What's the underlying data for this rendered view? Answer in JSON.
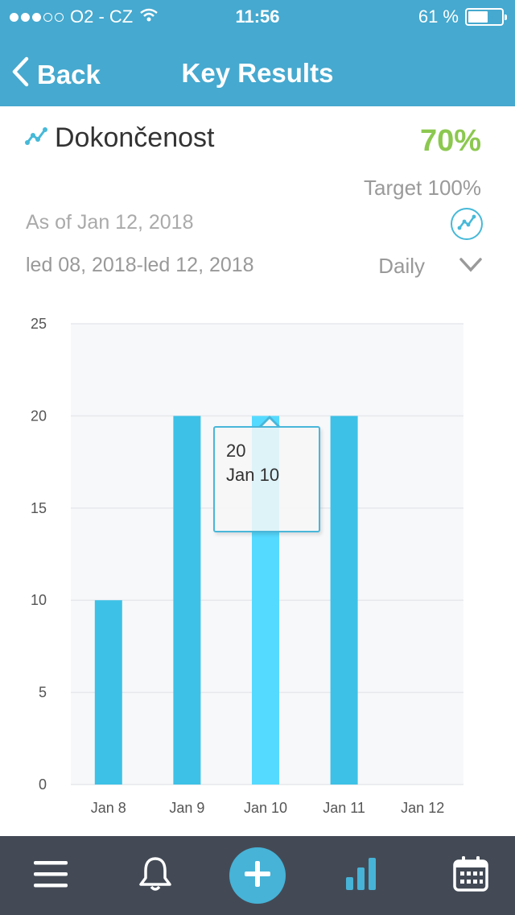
{
  "status_bar": {
    "carrier": "O2 - CZ",
    "time": "11:56",
    "battery": "61 %",
    "battery_level": 0.61,
    "signal_bars_filled": 3,
    "signal_bars_total": 5
  },
  "nav": {
    "back_label": "Back",
    "title": "Key Results"
  },
  "result": {
    "name": "Dokončenost",
    "percent": "70%",
    "target": "Target 100%",
    "as_of": "As of Jan 12, 2018",
    "date_range": "led 08, 2018-led 12, 2018",
    "period": "Daily"
  },
  "tooltip": {
    "value": "20",
    "date": "Jan 10"
  },
  "colors": {
    "header": "#46a9cf",
    "bar": "#3dc1e6",
    "bar_highlight": "#55daff",
    "percent": "#8cc850",
    "tabbar": "#434a56",
    "accent": "#46b3d7"
  },
  "icons": {
    "back": "chevron-left-icon",
    "trend": "trend-line-icon",
    "dropdown": "chevron-down-icon",
    "menu": "menu-icon",
    "notifications": "bell-icon",
    "add": "plus-icon",
    "stats": "bar-chart-icon",
    "calendar": "calendar-icon"
  },
  "chart_data": {
    "type": "bar",
    "categories": [
      "Jan 8",
      "Jan 9",
      "Jan 10",
      "Jan 11",
      "Jan 12"
    ],
    "values": [
      10,
      20,
      20,
      20,
      0
    ],
    "highlighted_index": 2,
    "ylim": [
      0,
      25
    ],
    "yticks": [
      0,
      5,
      10,
      15,
      20,
      25
    ],
    "grid": true
  }
}
